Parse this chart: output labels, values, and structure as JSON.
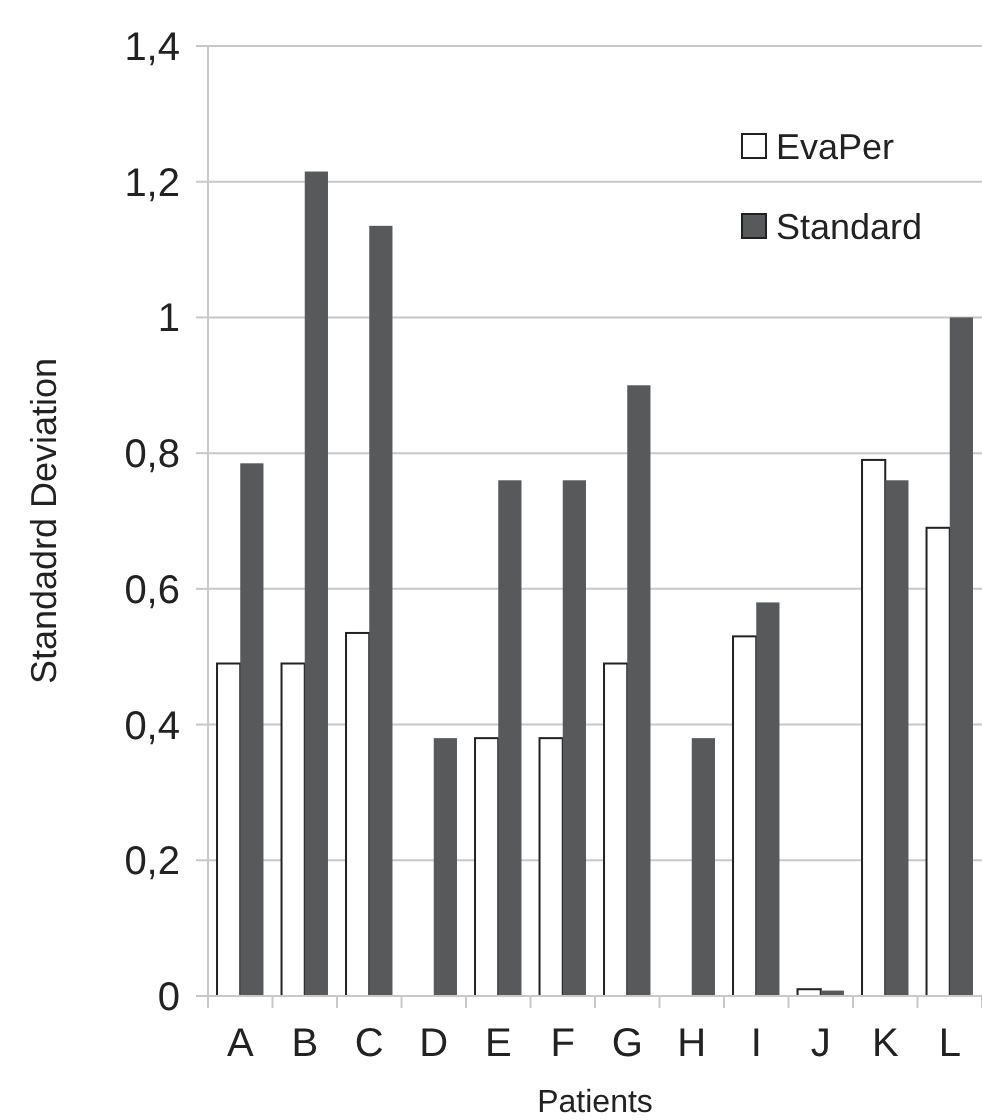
{
  "chart_data": {
    "type": "bar",
    "xlabel": "Patients",
    "ylabel": "Standadrd  Deviation",
    "categories": [
      "A",
      "B",
      "C",
      "D",
      "E",
      "F",
      "G",
      "H",
      "I",
      "J",
      "K",
      "L"
    ],
    "series": [
      {
        "name": "EvaPer",
        "color": "#ffffff",
        "values": [
          0.49,
          0.49,
          0.535,
          0,
          0.38,
          0.38,
          0.49,
          0,
          0.53,
          0.01,
          0.79,
          0.69
        ]
      },
      {
        "name": "Standard",
        "color": "#58595b",
        "values": [
          0.785,
          1.215,
          1.135,
          0.38,
          0.76,
          0.76,
          0.9,
          0.38,
          0.58,
          0.008,
          0.76,
          1.0
        ]
      }
    ],
    "ylim": [
      0,
      1.4
    ],
    "yticks": [
      0,
      {
        "value": 0.2,
        "label": "0,2"
      },
      {
        "value": 0.4,
        "label": "0,4"
      },
      {
        "value": 0.6,
        "label": "0,6"
      },
      {
        "value": 0.8,
        "label": "0,8"
      },
      1,
      {
        "value": 1.2,
        "label": "1,2"
      },
      {
        "value": 1.4,
        "label": "1,4"
      }
    ],
    "grid": "y",
    "legend": "top right"
  }
}
